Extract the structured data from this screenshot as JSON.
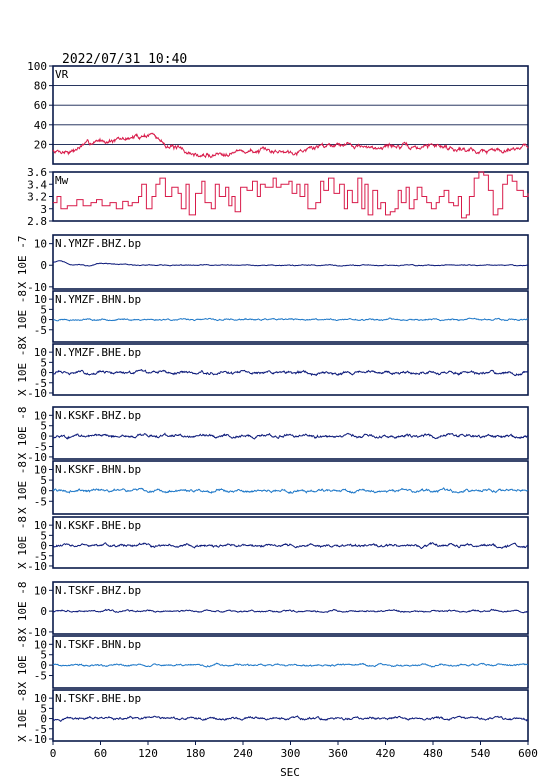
{
  "header": {
    "timestamp": "2022/07/31 10:40"
  },
  "colors": {
    "axes": "#0a1a4a",
    "vr_mw": "#d81b4a",
    "dark_trace": "#0c1a7a",
    "light_trace": "#1e78c8",
    "text": "#000000"
  },
  "chart_data": [
    {
      "type": "line",
      "label": "VR",
      "ylim": [
        0,
        100
      ],
      "yticks": [
        20,
        40,
        60,
        80,
        100
      ],
      "grid": "horizontal",
      "color": "#d81b4a",
      "trend": [
        [
          0,
          13
        ],
        [
          25,
          13
        ],
        [
          40,
          20
        ],
        [
          60,
          24
        ],
        [
          80,
          24
        ],
        [
          100,
          27
        ],
        [
          115,
          29
        ],
        [
          125,
          31
        ],
        [
          135,
          24
        ],
        [
          150,
          17
        ],
        [
          170,
          12
        ],
        [
          185,
          8
        ],
        [
          200,
          9
        ],
        [
          220,
          12
        ],
        [
          240,
          13
        ],
        [
          270,
          13
        ],
        [
          300,
          13
        ],
        [
          320,
          15
        ],
        [
          340,
          19
        ],
        [
          360,
          21
        ],
        [
          380,
          20
        ],
        [
          400,
          15
        ],
        [
          420,
          19
        ],
        [
          440,
          18
        ],
        [
          460,
          16
        ],
        [
          480,
          20
        ],
        [
          500,
          17
        ],
        [
          520,
          15
        ],
        [
          540,
          13
        ],
        [
          560,
          14
        ],
        [
          580,
          16
        ],
        [
          600,
          19
        ]
      ],
      "noise": 2,
      "seed": 7,
      "segments": 900
    },
    {
      "type": "step",
      "label": "Mw",
      "ylim": [
        2.8,
        3.6
      ],
      "yticks": [
        2.8,
        3.0,
        3.2,
        3.4,
        3.6
      ],
      "color": "#d81b4a",
      "steps": [
        [
          0,
          3.1
        ],
        [
          5,
          3.2
        ],
        [
          10,
          3.0
        ],
        [
          18,
          3.05
        ],
        [
          30,
          3.15
        ],
        [
          38,
          3.05
        ],
        [
          48,
          3.1
        ],
        [
          55,
          3.15
        ],
        [
          62,
          3.05
        ],
        [
          72,
          3.1
        ],
        [
          80,
          3.0
        ],
        [
          88,
          3.12
        ],
        [
          95,
          3.05
        ],
        [
          100,
          3.1
        ],
        [
          108,
          3.2
        ],
        [
          112,
          3.4
        ],
        [
          118,
          3.0
        ],
        [
          125,
          3.2
        ],
        [
          130,
          3.4
        ],
        [
          135,
          3.5
        ],
        [
          142,
          3.2
        ],
        [
          150,
          3.35
        ],
        [
          158,
          3.25
        ],
        [
          162,
          3.0
        ],
        [
          168,
          3.4
        ],
        [
          172,
          2.9
        ],
        [
          180,
          3.25
        ],
        [
          188,
          3.45
        ],
        [
          192,
          3.1
        ],
        [
          200,
          3.0
        ],
        [
          205,
          3.4
        ],
        [
          210,
          3.2
        ],
        [
          218,
          3.35
        ],
        [
          222,
          3.05
        ],
        [
          226,
          3.2
        ],
        [
          230,
          2.95
        ],
        [
          237,
          3.35
        ],
        [
          245,
          3.3
        ],
        [
          252,
          3.45
        ],
        [
          258,
          3.2
        ],
        [
          262,
          3.4
        ],
        [
          268,
          3.35
        ],
        [
          278,
          3.5
        ],
        [
          282,
          3.35
        ],
        [
          288,
          3.4
        ],
        [
          298,
          3.45
        ],
        [
          302,
          3.25
        ],
        [
          308,
          3.4
        ],
        [
          312,
          3.2
        ],
        [
          318,
          3.4
        ],
        [
          322,
          3.0
        ],
        [
          332,
          3.1
        ],
        [
          338,
          3.45
        ],
        [
          342,
          3.3
        ],
        [
          348,
          3.5
        ],
        [
          355,
          3.25
        ],
        [
          362,
          3.4
        ],
        [
          368,
          3.0
        ],
        [
          372,
          3.3
        ],
        [
          378,
          3.1
        ],
        [
          385,
          3.5
        ],
        [
          390,
          3.0
        ],
        [
          394,
          3.4
        ],
        [
          398,
          2.9
        ],
        [
          404,
          3.3
        ],
        [
          410,
          3.0
        ],
        [
          414,
          3.1
        ],
        [
          420,
          2.9
        ],
        [
          426,
          2.95
        ],
        [
          432,
          3.0
        ],
        [
          436,
          3.3
        ],
        [
          440,
          3.1
        ],
        [
          446,
          3.35
        ],
        [
          450,
          3.0
        ],
        [
          456,
          3.15
        ],
        [
          460,
          3.35
        ],
        [
          466,
          3.2
        ],
        [
          472,
          3.1
        ],
        [
          478,
          3.0
        ],
        [
          484,
          3.1
        ],
        [
          488,
          3.2
        ],
        [
          494,
          3.3
        ],
        [
          500,
          3.1
        ],
        [
          506,
          3.05
        ],
        [
          512,
          3.2
        ],
        [
          516,
          2.85
        ],
        [
          522,
          2.9
        ],
        [
          526,
          3.2
        ],
        [
          532,
          3.5
        ],
        [
          538,
          3.6
        ],
        [
          544,
          3.55
        ],
        [
          550,
          3.3
        ],
        [
          556,
          2.9
        ],
        [
          562,
          3.0
        ],
        [
          568,
          3.4
        ],
        [
          574,
          3.55
        ],
        [
          580,
          3.45
        ],
        [
          586,
          3.3
        ],
        [
          594,
          3.2
        ],
        [
          600,
          3.25
        ]
      ]
    },
    {
      "type": "line",
      "label": "N.YMZF.BHZ.bp",
      "ylim": [
        -11,
        14
      ],
      "yticks": [
        -10,
        0,
        10
      ],
      "ylabel": "X 10E -7",
      "color": "#0c1a7a",
      "wave": [
        [
          0,
          1.5
        ],
        [
          8,
          2.2
        ],
        [
          20,
          0.6
        ],
        [
          35,
          0.1
        ],
        [
          45,
          -0.4
        ],
        [
          60,
          1.0
        ],
        [
          75,
          0.6
        ],
        [
          95,
          0.1
        ],
        [
          120,
          0
        ],
        [
          600,
          0
        ]
      ],
      "noise": 0.25,
      "seed": 11,
      "segments": 900
    },
    {
      "type": "line",
      "label": "N.YMZF.BHN.bp",
      "ylim": [
        -11,
        14
      ],
      "yticks": [
        -5,
        0,
        5,
        10
      ],
      "ylabel": "X 10E -8",
      "color": "#1e78c8",
      "noise": 0.45,
      "seed": 23,
      "segments": 900
    },
    {
      "type": "line",
      "label": "N.YMZF.BHE.bp",
      "ylim": [
        -11,
        14
      ],
      "yticks": [
        -10,
        -5,
        0,
        5,
        10
      ],
      "ylabel": "X 10E -8",
      "color": "#0c1a7a",
      "noise": 0.9,
      "seed": 31,
      "segments": 900
    },
    {
      "type": "line",
      "label": "N.KSKF.BHZ.bp",
      "ylim": [
        -11,
        14
      ],
      "yticks": [
        -10,
        -5,
        0,
        5,
        10
      ],
      "ylabel": "X 10E -8",
      "color": "#0c1a7a",
      "noise": 0.9,
      "seed": 43,
      "segments": 900
    },
    {
      "type": "line",
      "label": "N.KSKF.BHN.bp",
      "ylim": [
        -11,
        14
      ],
      "yticks": [
        -5,
        0,
        5,
        10
      ],
      "ylabel": "X 10E -8",
      "color": "#1e78c8",
      "noise": 0.8,
      "seed": 57,
      "segments": 900
    },
    {
      "type": "line",
      "label": "N.KSKF.BHE.bp",
      "ylim": [
        -11,
        14
      ],
      "yticks": [
        -10,
        -5,
        0,
        5,
        10
      ],
      "ylabel": "X 10E -8",
      "color": "#0c1a7a",
      "noise": 0.8,
      "seed": 61,
      "segments": 900
    },
    {
      "type": "line",
      "label": "N.TSKF.BHZ.bp",
      "ylim": [
        -11,
        14
      ],
      "yticks": [
        -10,
        0,
        10
      ],
      "ylabel": "X 10E -8",
      "color": "#0c1a7a",
      "noise": 0.5,
      "seed": 73,
      "segments": 900
    },
    {
      "type": "line",
      "label": "N.TSKF.BHN.bp",
      "ylim": [
        -11,
        14
      ],
      "yticks": [
        -5,
        0,
        5,
        10
      ],
      "ylabel": "X 10E -8",
      "color": "#1e78c8",
      "noise": 0.55,
      "seed": 89,
      "segments": 900
    },
    {
      "type": "line",
      "label": "N.TSKF.BHE.bp",
      "ylim": [
        -11,
        14
      ],
      "yticks": [
        -10,
        -5,
        0,
        5,
        10
      ],
      "ylabel": "X 10E -8",
      "color": "#0c1a7a",
      "noise": 0.75,
      "seed": 97,
      "segments": 900
    }
  ],
  "xaxis": {
    "label": "SEC",
    "range": [
      0,
      600
    ],
    "ticks": [
      0,
      60,
      120,
      180,
      240,
      300,
      360,
      420,
      480,
      540,
      600
    ]
  }
}
